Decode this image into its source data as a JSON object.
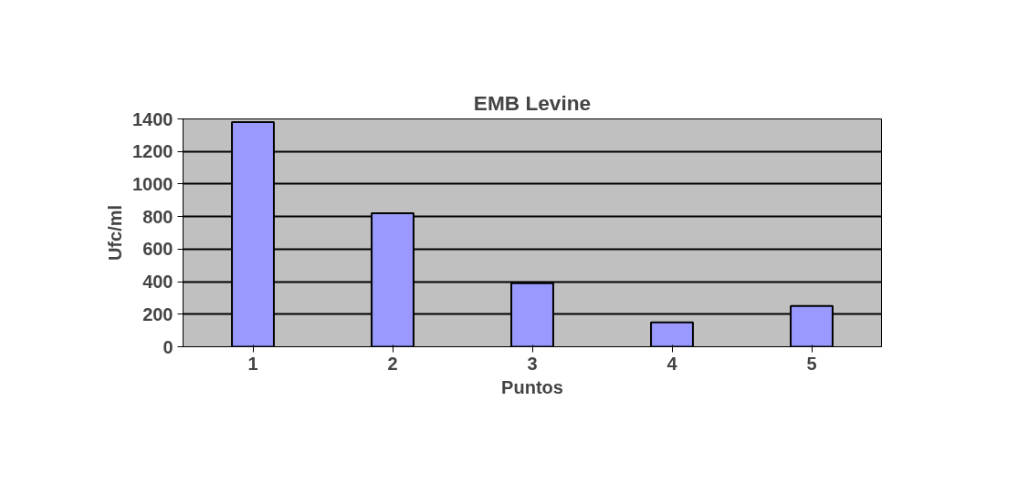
{
  "chart_data": {
    "type": "bar",
    "title": "EMB Levine",
    "xlabel": "Puntos",
    "ylabel": "Ufc/ml",
    "categories": [
      "1",
      "2",
      "3",
      "4",
      "5"
    ],
    "values": [
      1380,
      820,
      390,
      150,
      250
    ],
    "color": "#9999ff",
    "ylim": [
      0,
      1400
    ],
    "yticks": [
      0,
      200,
      400,
      600,
      800,
      1000,
      1200,
      1400
    ],
    "grid": "y"
  }
}
